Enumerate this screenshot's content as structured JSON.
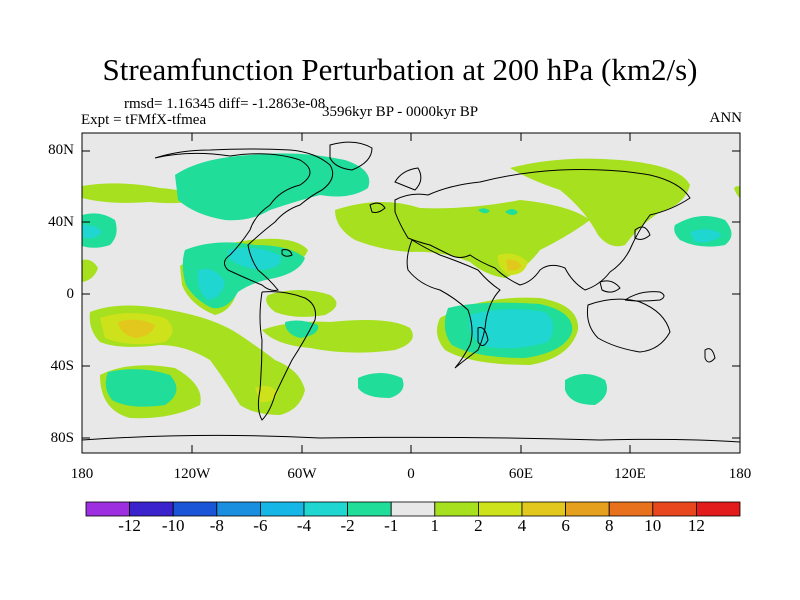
{
  "title": "Streamfunction Perturbation at 200 hPa (km2/s)",
  "stats": "rmsd= 1.16345 diff= -1.2863e-08",
  "experiment": "Expt = tFMfX-tfmea",
  "period": "3596kyr BP - 0000kyr BP",
  "season": "ANN",
  "y_ticks": [
    "80N",
    "40N",
    "0",
    "40S",
    "80S"
  ],
  "x_ticks": [
    "180",
    "120W",
    "60W",
    "0",
    "60E",
    "120E",
    "180"
  ],
  "colorbar": {
    "labels": [
      "-12",
      "-10",
      "-8",
      "-6",
      "-4",
      "-2",
      "-1",
      "1",
      "2",
      "4",
      "6",
      "8",
      "10",
      "12"
    ],
    "colors": [
      "#9e2fe0",
      "#3a22cc",
      "#1a55d8",
      "#1a8fe0",
      "#16b7e6",
      "#1fd6d0",
      "#20dd9a",
      "#e8e8e8",
      "#a6e01e",
      "#cde21a",
      "#e2c71c",
      "#e5a01e",
      "#e8711e",
      "#e8461c",
      "#e21c1c"
    ]
  }
}
